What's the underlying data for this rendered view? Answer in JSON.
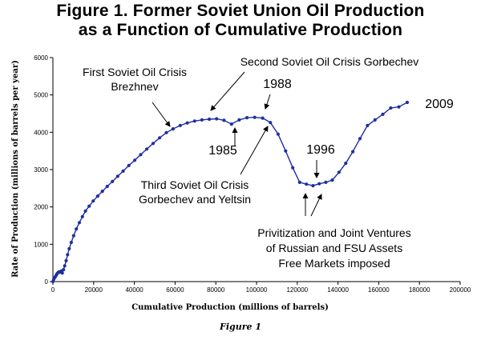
{
  "chart_data": {
    "type": "line",
    "title": "Figure 1.  Former Soviet Union Oil Production",
    "subtitle": "as a Function of Cumulative Production",
    "xlabel": "Cumulative Production (millions of barrels)",
    "ylabel": "Rate of Production (millions of barrels per year)",
    "xlim": [
      0,
      200000
    ],
    "ylim": [
      0,
      6000
    ],
    "x_ticks": [
      0,
      20000,
      40000,
      60000,
      80000,
      100000,
      120000,
      140000,
      160000,
      180000,
      200000
    ],
    "y_ticks": [
      0,
      1000,
      2000,
      3000,
      4000,
      5000,
      6000
    ],
    "grid": false,
    "legend": "none",
    "color": "#1f2fa0",
    "series": [
      {
        "x": [
          0,
          400,
          800,
          1200,
          1600,
          2000,
          2500,
          3000,
          3500,
          4000,
          4600,
          5200,
          5800,
          6500,
          7200,
          8000,
          9000,
          10200,
          11500,
          13000,
          14500,
          16000,
          17800,
          19800,
          22000,
          24300,
          26700,
          29200,
          31800,
          34500,
          37300,
          40200,
          43100,
          46100,
          49200,
          52400,
          55700,
          59000,
          62500,
          66000,
          69600,
          73200,
          76800,
          80400,
          84000,
          87700,
          91500,
          95300,
          99100,
          103000,
          106800,
          110600,
          114300,
          117800,
          121200,
          124500,
          127700,
          130800,
          134000,
          137200,
          140500,
          143800,
          147300,
          150800,
          154500,
          158200,
          162000,
          165900,
          169900,
          174000
        ],
        "y": [
          0,
          60,
          100,
          130,
          170,
          210,
          240,
          260,
          250,
          280,
          230,
          320,
          420,
          560,
          720,
          880,
          1050,
          1230,
          1410,
          1580,
          1740,
          1890,
          2020,
          2160,
          2290,
          2420,
          2550,
          2680,
          2820,
          2960,
          3110,
          3250,
          3400,
          3550,
          3700,
          3850,
          3990,
          4090,
          4180,
          4250,
          4300,
          4330,
          4350,
          4360,
          4320,
          4220,
          4330,
          4390,
          4400,
          4380,
          4260,
          3950,
          3500,
          3050,
          2660,
          2610,
          2570,
          2620,
          2660,
          2720,
          2930,
          3170,
          3480,
          3830,
          4180,
          4330,
          4480,
          4650,
          4680,
          4800
        ]
      }
    ],
    "annotations": [
      {
        "id": "first-crisis",
        "lines": [
          "First Soviet Oil Crisis",
          "Brezhnev"
        ]
      },
      {
        "id": "second-crisis",
        "lines": [
          "Second Soviet Oil Crisis Gorbechev"
        ]
      },
      {
        "id": "third-crisis",
        "lines": [
          "Third Soviet Oil Crisis",
          "Gorbechev and Yeltsin"
        ]
      },
      {
        "id": "privatization",
        "lines": [
          "Privitization and Joint Ventures",
          "of Russian and FSU Assets",
          "Free Markets imposed"
        ]
      },
      {
        "id": "y1985",
        "lines": [
          "1985"
        ]
      },
      {
        "id": "y1988",
        "lines": [
          "1988"
        ]
      },
      {
        "id": "y1996",
        "lines": [
          "1996"
        ]
      },
      {
        "id": "y2009",
        "lines": [
          "2009"
        ]
      }
    ]
  },
  "caption": "Figure 1"
}
